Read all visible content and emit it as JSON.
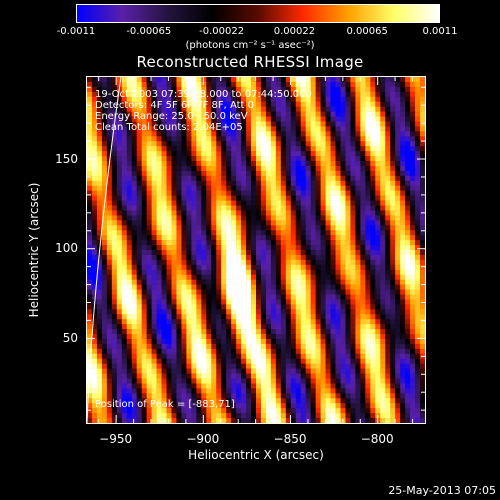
{
  "chart_data": {
    "type": "heatmap",
    "title": "Reconstructed RHESSI Image",
    "xlabel": "Heliocentric X (arcsec)",
    "ylabel": "Heliocentric Y (arcsec)",
    "xlim": [
      -967,
      -772
    ],
    "ylim": [
      2,
      196
    ],
    "xticks": [
      -950,
      -900,
      -850,
      -800
    ],
    "yticks": [
      50,
      100,
      150
    ],
    "colorbar": {
      "range": [
        -0.0011,
        0.0011
      ],
      "ticks": [
        "-0.0011",
        "-0.00065",
        "-0.00022",
        "0.00022",
        "0.00065",
        "0.0011"
      ],
      "unit": "(photons cm⁻² s⁻¹ asec⁻²)",
      "colors": [
        "#0000ff",
        "#5a1fa8",
        "#241440",
        "#000000",
        "#5a0a00",
        "#ff2a00",
        "#ffa000",
        "#ffff66",
        "#ffffff"
      ]
    },
    "annotations": {
      "time_range": "19-Oct-2003 07:39:28.000 to 07:44:50.000",
      "detectors": "Detectors: 4F 5F 6F 7F 8F, Att 0",
      "energy": "Energy Range: 25.0 - 50.0 keV",
      "method": "Clean    Total counts: 2.04E+05",
      "peak": "Position of Peak = [-883,71]"
    },
    "peak": {
      "x": -883,
      "y": 71
    }
  },
  "footer": {
    "timestamp": "25-May-2013 07:05"
  }
}
